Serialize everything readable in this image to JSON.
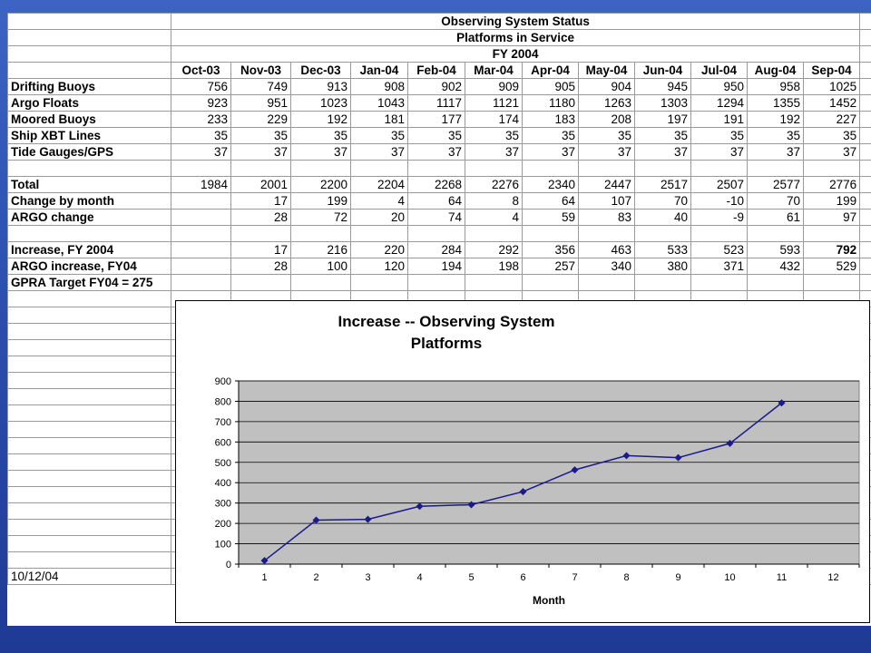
{
  "sheet": {
    "title1": "Observing System Status",
    "title2": "Platforms in Service",
    "fy": "FY 2004",
    "months": [
      "Oct-03",
      "Nov-03",
      "Dec-03",
      "Jan-04",
      "Feb-04",
      "Mar-04",
      "Apr-04",
      "May-04",
      "Jun-04",
      "Jul-04",
      "Aug-04",
      "Sep-04"
    ],
    "rows": [
      {
        "label": "Drifting Buoys",
        "values": [
          "756",
          "749",
          "913",
          "908",
          "902",
          "909",
          "905",
          "904",
          "945",
          "950",
          "958",
          "1025"
        ]
      },
      {
        "label": "Argo Floats",
        "values": [
          "923",
          "951",
          "1023",
          "1043",
          "1117",
          "1121",
          "1180",
          "1263",
          "1303",
          "1294",
          "1355",
          "1452"
        ]
      },
      {
        "label": "Moored Buoys",
        "values": [
          "233",
          "229",
          "192",
          "181",
          "177",
          "174",
          "183",
          "208",
          "197",
          "191",
          "192",
          "227"
        ]
      },
      {
        "label": "Ship XBT Lines",
        "values": [
          "35",
          "35",
          "35",
          "35",
          "35",
          "35",
          "35",
          "35",
          "35",
          "35",
          "35",
          "35"
        ]
      },
      {
        "label": "Tide Gauges/GPS",
        "values": [
          "37",
          "37",
          "37",
          "37",
          "37",
          "37",
          "37",
          "37",
          "37",
          "37",
          "37",
          "37"
        ]
      },
      {
        "label": "",
        "values": []
      },
      {
        "label": "Total",
        "values": [
          "1984",
          "2001",
          "2200",
          "2204",
          "2268",
          "2276",
          "2340",
          "2447",
          "2517",
          "2507",
          "2577",
          "2776"
        ]
      },
      {
        "label": "Change by month",
        "values": [
          "",
          "17",
          "199",
          "4",
          "64",
          "8",
          "64",
          "107",
          "70",
          "-10",
          "70",
          "199"
        ]
      },
      {
        "label": "ARGO change",
        "values": [
          "",
          "28",
          "72",
          "20",
          "74",
          "4",
          "59",
          "83",
          "40",
          "-9",
          "61",
          "97"
        ]
      },
      {
        "label": "",
        "values": []
      },
      {
        "label": "Increase, FY 2004",
        "values": [
          "",
          "17",
          "216",
          "220",
          "284",
          "292",
          "356",
          "463",
          "533",
          "523",
          "593",
          "792"
        ]
      },
      {
        "label": "ARGO increase, FY04",
        "values": [
          "",
          "28",
          "100",
          "120",
          "194",
          "198",
          "257",
          "340",
          "380",
          "371",
          "432",
          "529"
        ]
      },
      {
        "label": "GPRA Target FY04 = 275",
        "values": []
      }
    ],
    "date": "10/12/04"
  },
  "chart_data": {
    "type": "line",
    "title": "Increase -- Observing System Platforms",
    "title_lines": [
      "Increase -- Observing System",
      "Platforms"
    ],
    "xlabel": "Month",
    "ylabel": "",
    "x": [
      1,
      2,
      3,
      4,
      5,
      6,
      7,
      8,
      9,
      10,
      11
    ],
    "categories": [
      "1",
      "2",
      "3",
      "4",
      "5",
      "6",
      "7",
      "8",
      "9",
      "10",
      "11",
      "12"
    ],
    "xlim": [
      1,
      12
    ],
    "ylim": [
      0,
      900
    ],
    "yticks": [
      "0",
      "100",
      "200",
      "300",
      "400",
      "500",
      "600",
      "700",
      "800",
      "900"
    ],
    "series": [
      {
        "values": [
          17,
          216,
          220,
          284,
          292,
          356,
          463,
          533,
          523,
          593,
          792
        ]
      }
    ],
    "grid": true,
    "legend": "none",
    "colors": {
      "line": "#1a1a8c",
      "plot_bg": "#c0c0c0",
      "grid": "#000000"
    }
  }
}
